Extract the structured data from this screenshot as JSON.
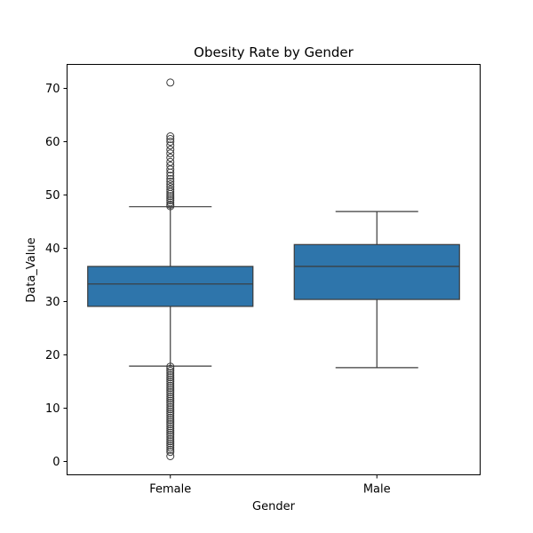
{
  "chart_data": {
    "type": "box",
    "title": "Obesity Rate by Gender",
    "xlabel": "Gender",
    "ylabel": "Data_Value",
    "categories": [
      "Female",
      "Male"
    ],
    "ylim": [
      -2.5,
      74.5
    ],
    "yticks": [
      0,
      10,
      20,
      30,
      40,
      50,
      60,
      70
    ],
    "grid": false,
    "box_color": "#2e75ab",
    "line_color": "#3b3b3b",
    "boxes": [
      {
        "category": "Female",
        "whisker_low": 17.9,
        "q1": 29.1,
        "median": 33.3,
        "q3": 36.6,
        "whisker_high": 47.8,
        "outliers_high": [
          47.9,
          48.2,
          48.6,
          49.0,
          49.4,
          49.8,
          50.2,
          50.6,
          51.0,
          51.5,
          52.0,
          52.5,
          53.0,
          53.6,
          54.2,
          54.8,
          55.5,
          56.2,
          57.0,
          57.8,
          58.5,
          59.3,
          60.0,
          60.5,
          61.0,
          71.1
        ],
        "outliers_low": [
          17.8,
          17.4,
          17.0,
          16.6,
          16.2,
          15.8,
          15.4,
          15.0,
          14.6,
          14.2,
          13.8,
          13.4,
          13.0,
          12.6,
          12.2,
          11.8,
          11.4,
          11.0,
          10.6,
          10.2,
          9.8,
          9.4,
          9.0,
          8.6,
          8.2,
          7.8,
          7.4,
          7.0,
          6.6,
          6.2,
          5.8,
          5.4,
          5.0,
          4.6,
          4.2,
          3.8,
          3.4,
          3.0,
          2.6,
          2.2,
          1.8,
          1.0
        ]
      },
      {
        "category": "Male",
        "whisker_low": 17.6,
        "q1": 30.4,
        "median": 36.6,
        "q3": 40.7,
        "whisker_high": 46.9,
        "outliers_high": [],
        "outliers_low": []
      }
    ]
  }
}
